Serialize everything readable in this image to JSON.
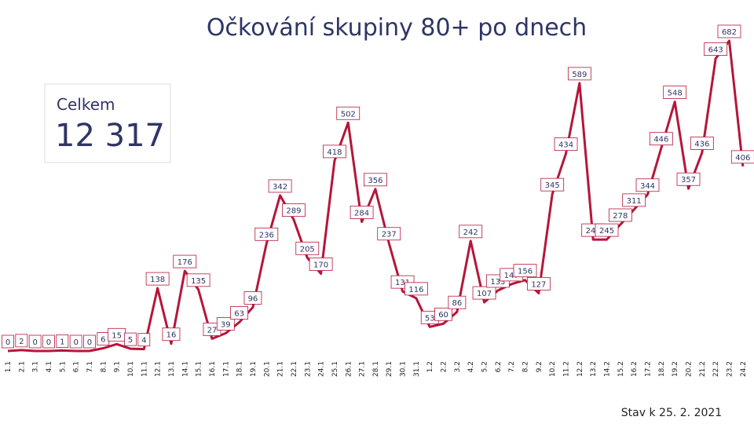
{
  "title": "Očkování skupiny 80+ po dnech",
  "total": {
    "label": "Celkem",
    "value": "12 317"
  },
  "footnote": "Stav k 25. 2. 2021",
  "chart_data": {
    "type": "line",
    "color": "#b5163a",
    "categories": [
      "1.1",
      "2.1",
      "3.1",
      "4.1",
      "5.1",
      "6.1",
      "7.1",
      "8.1",
      "9.1",
      "10.1",
      "11.1",
      "12.1",
      "13.1",
      "14.1",
      "15.1",
      "16.1",
      "17.1",
      "18.1",
      "19.1",
      "20.1",
      "21.1",
      "22.1",
      "23.1",
      "24.1",
      "25.1",
      "26.1",
      "27.1",
      "28.1",
      "29.1",
      "30.1",
      "31.1",
      "1.2",
      "2.2",
      "3.2",
      "4.2",
      "5.2",
      "6.2",
      "7.2",
      "8.2",
      "9.2",
      "10.2",
      "11.2",
      "12.2",
      "13.2",
      "14.2",
      "15.2",
      "16.2",
      "17.2",
      "18.2",
      "19.2",
      "20.2",
      "21.2",
      "22.2",
      "23.2",
      "24.2"
    ],
    "values": [
      0,
      2,
      0,
      0,
      1,
      0,
      0,
      6,
      15,
      5,
      4,
      138,
      16,
      176,
      135,
      27,
      39,
      63,
      96,
      236,
      342,
      289,
      205,
      170,
      418,
      502,
      284,
      356,
      237,
      131,
      116,
      53,
      60,
      86,
      242,
      107,
      133,
      147,
      156,
      127,
      345,
      434,
      589,
      245,
      245,
      278,
      311,
      344,
      446,
      548,
      357,
      436,
      643,
      682,
      406
    ]
  }
}
